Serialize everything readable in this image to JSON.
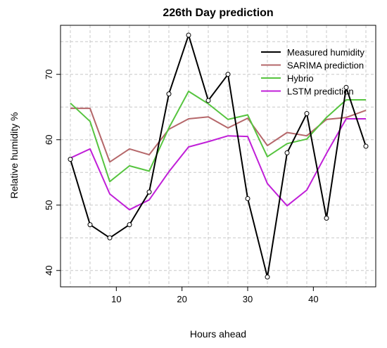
{
  "chart_data": {
    "type": "line",
    "title": "226th Day prediction",
    "xlabel": "Hours ahead",
    "ylabel": "Relative humidity %",
    "xlim": [
      1.5,
      49.5
    ],
    "ylim": [
      37.5,
      77.5
    ],
    "xticks": [
      10,
      20,
      30,
      40
    ],
    "yticks": [
      40,
      50,
      60,
      70
    ],
    "grid": true,
    "legend_position": "top-right",
    "x": [
      3,
      6,
      9,
      12,
      15,
      18,
      21,
      24,
      27,
      30,
      33,
      36,
      39,
      42,
      45,
      48
    ],
    "series": [
      {
        "name": "Measured humidity",
        "color": "#000000",
        "markers": true,
        "values": [
          57,
          47,
          45,
          47,
          52,
          67,
          76,
          66,
          70,
          51,
          39,
          58,
          64,
          48,
          68,
          59
        ]
      },
      {
        "name": "SARIMA prediction",
        "color": "#b5676a",
        "markers": false,
        "values": [
          64.8,
          64.8,
          56.6,
          58.6,
          57.7,
          61.6,
          63.2,
          63.5,
          61.8,
          63.3,
          59.1,
          61.1,
          60.6,
          63.1,
          63.4,
          64.5
        ]
      },
      {
        "name": "Hybrio",
        "color": "#56c43f",
        "markers": false,
        "values": [
          65.6,
          62.8,
          53.6,
          56.0,
          55.2,
          61.8,
          67.4,
          65.5,
          63.1,
          63.8,
          57.4,
          59.4,
          60.1,
          63.4,
          66.1,
          66.1
        ]
      },
      {
        "name": "LSTM prediction",
        "color": "#c01fd8",
        "markers": false,
        "values": [
          57.2,
          58.6,
          51.7,
          49.3,
          50.8,
          55.1,
          58.9,
          59.7,
          60.6,
          60.5,
          53.3,
          49.9,
          52.3,
          57.9,
          63.2,
          63.2
        ]
      }
    ]
  }
}
